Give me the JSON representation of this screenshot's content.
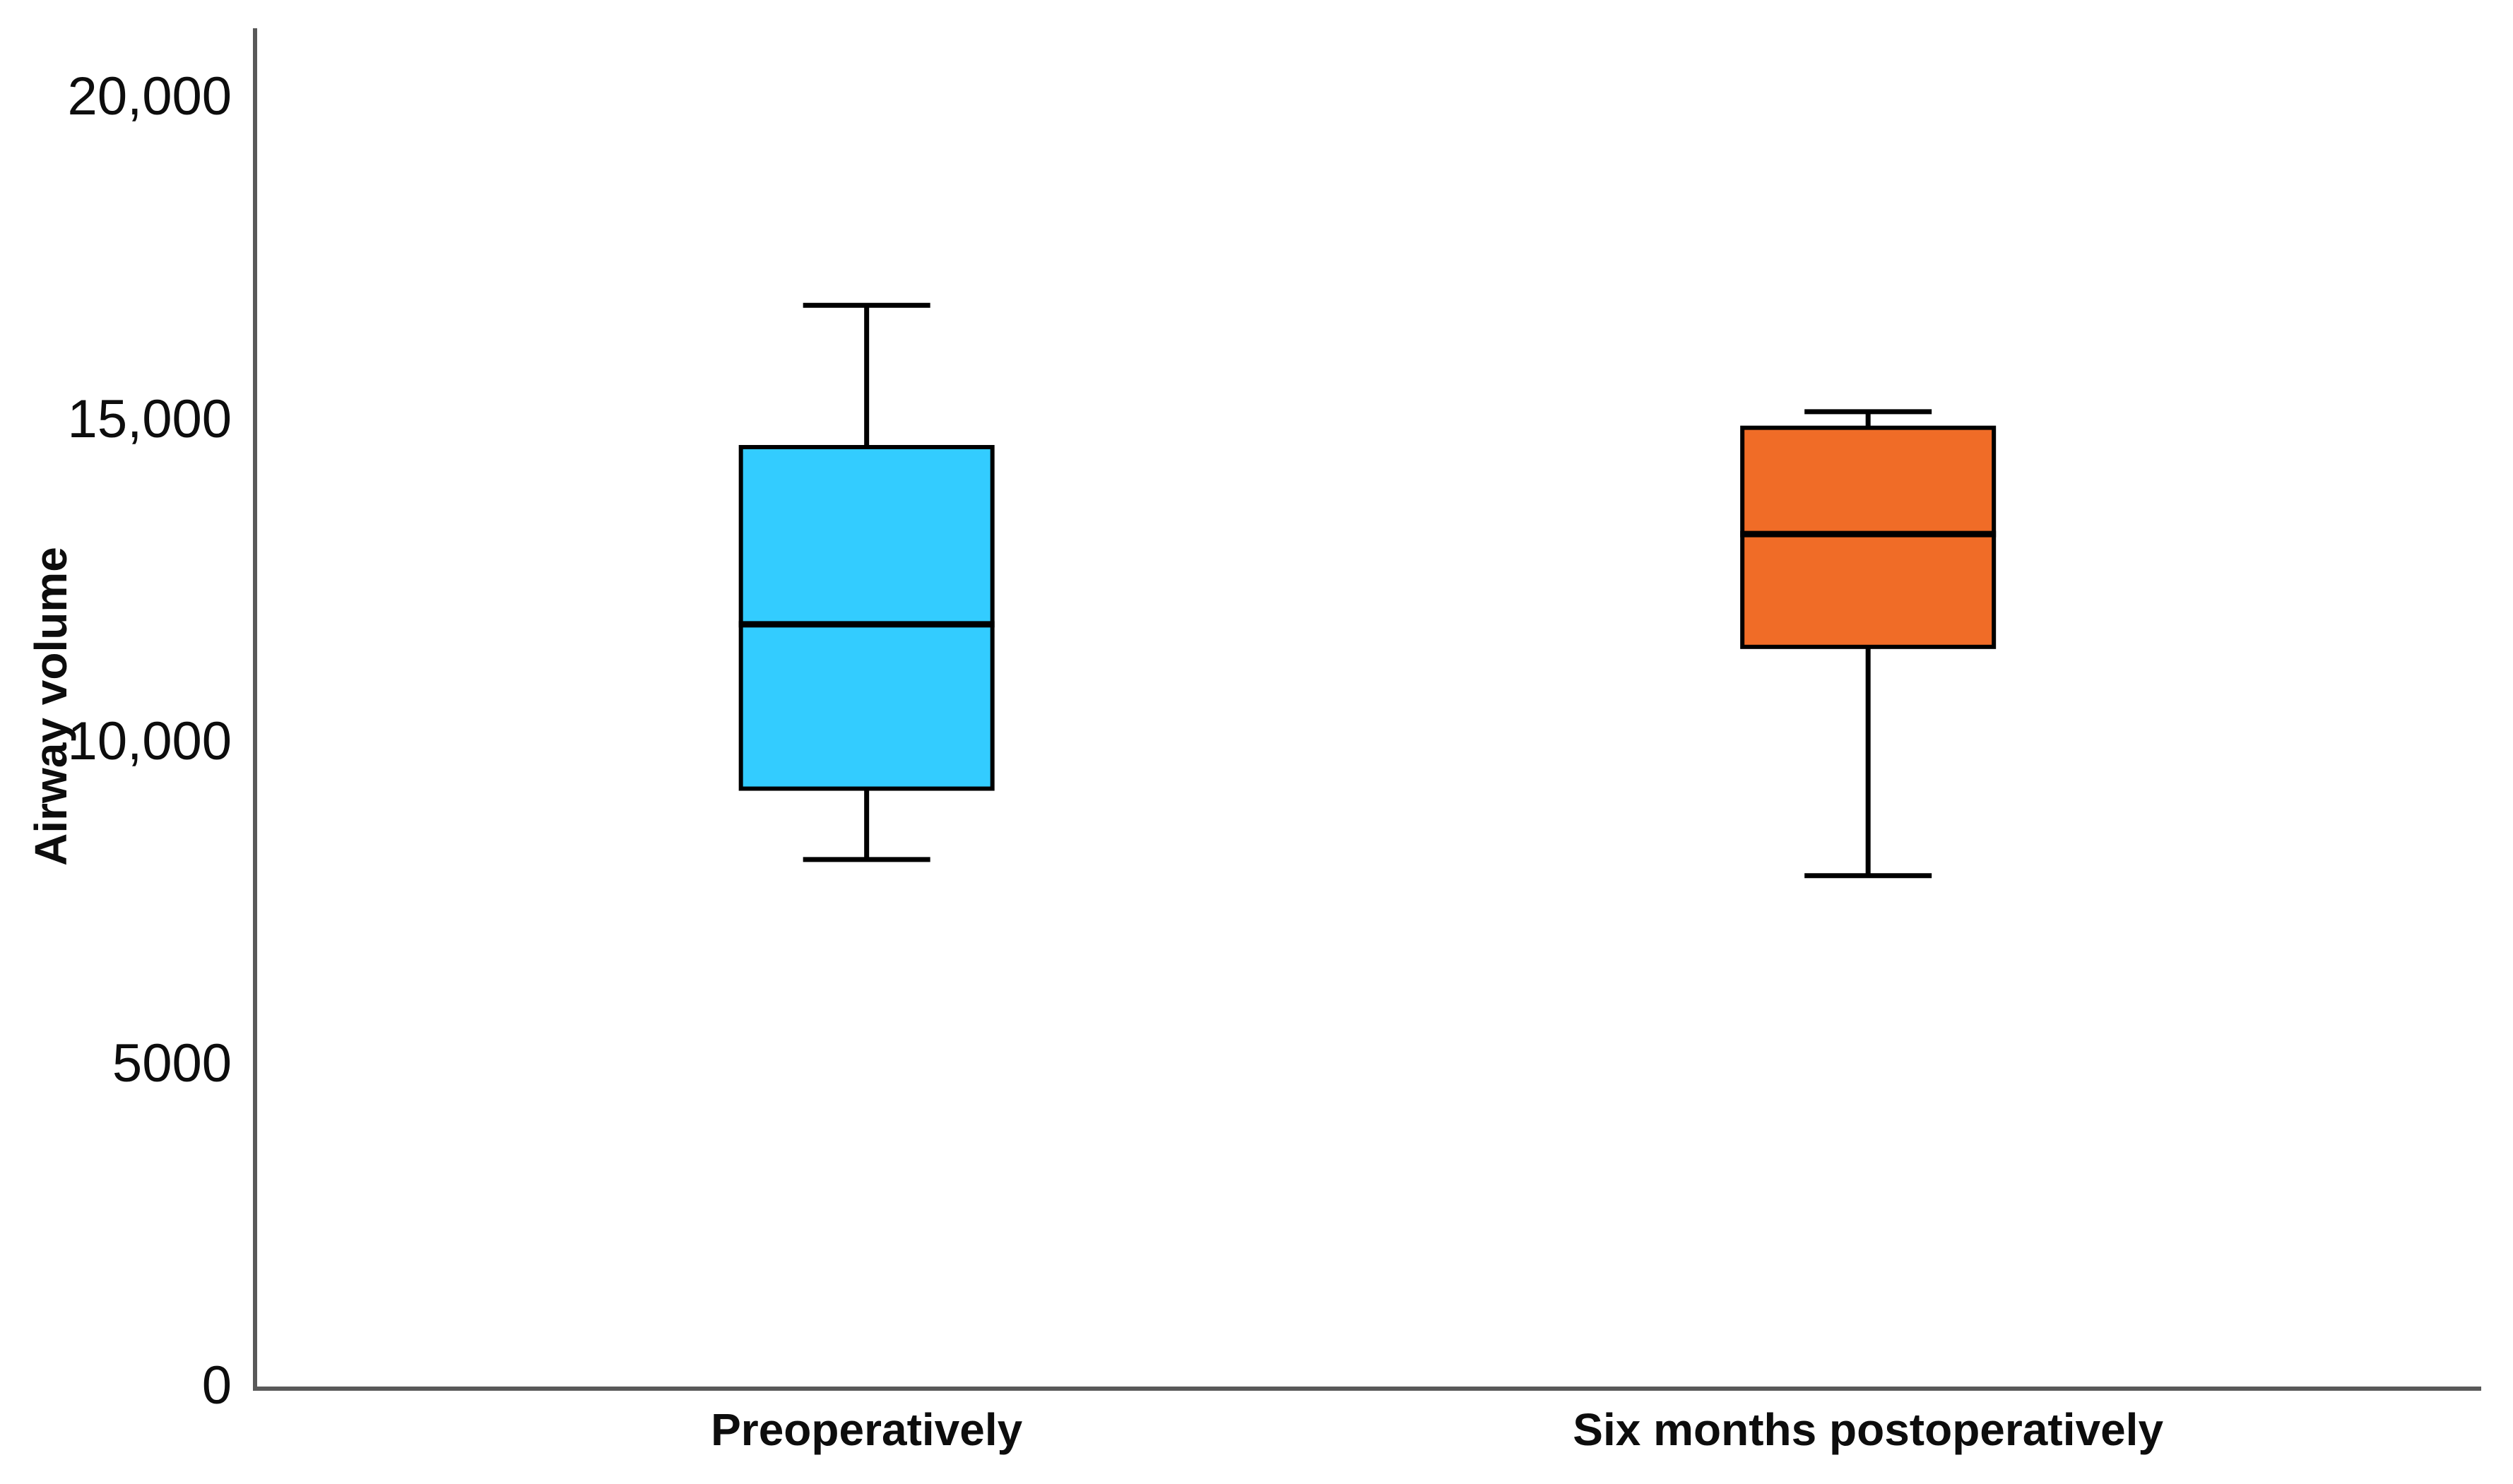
{
  "figure": {
    "background_color": "#ffffff",
    "axis_color": "#595959",
    "text_color": "#0d0d0d"
  },
  "chart_data": {
    "type": "boxplot",
    "title": "",
    "xlabel": "",
    "ylabel": "Airway volume",
    "ylim": [
      0,
      21100
    ],
    "grid": false,
    "legend_position": "none",
    "yticks": [
      {
        "value": 20000,
        "label": "20,000"
      },
      {
        "value": 15000,
        "label": "15,000"
      },
      {
        "value": 10000,
        "label": "10,000"
      },
      {
        "value": 5000,
        "label": "5000"
      },
      {
        "value": 0,
        "label": "0"
      }
    ],
    "categories": [
      "Preoperatively",
      "Six months postoperatively"
    ],
    "series": [
      {
        "name": "Preoperatively",
        "box_color": "#33CCFF",
        "outline_color": "#000000",
        "whisker_low": 8200,
        "q1": 9300,
        "median": 11850,
        "q3": 14600,
        "whisker_high": 16800
      },
      {
        "name": "Six months postoperatively",
        "box_color": "#F06C27",
        "outline_color": "#000000",
        "whisker_low": 7950,
        "q1": 11500,
        "median": 13250,
        "q3": 14900,
        "whisker_high": 15150
      }
    ]
  }
}
